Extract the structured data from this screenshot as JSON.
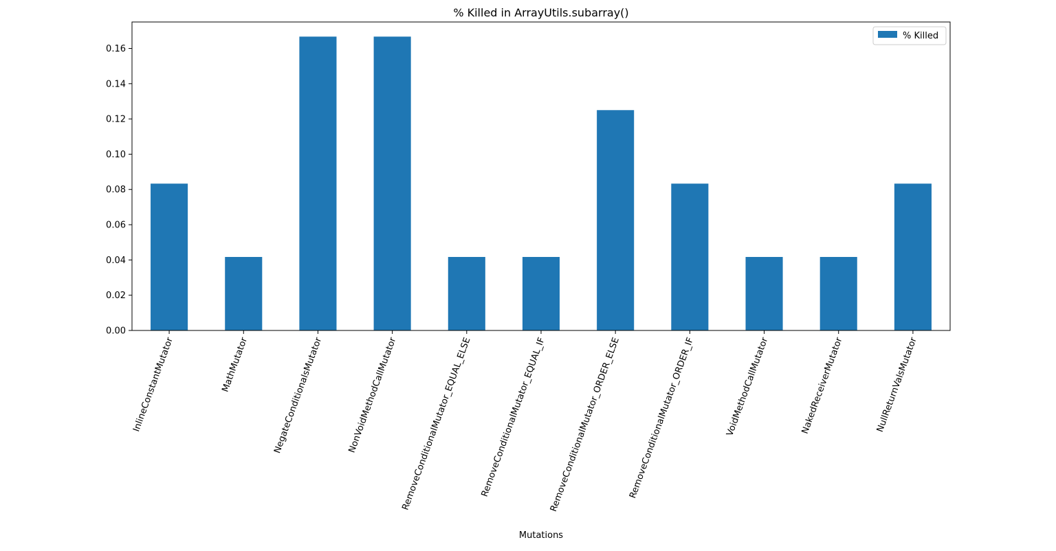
{
  "chart_data": {
    "type": "bar",
    "title": "% Killed in ArrayUtils.subarray()",
    "xlabel": "Mutations",
    "ylabel": "",
    "ylim": [
      0,
      0.175
    ],
    "yticks": [
      0.0,
      0.02,
      0.04,
      0.06,
      0.08,
      0.1,
      0.12,
      0.14,
      0.16
    ],
    "ytick_labels": [
      "0.00",
      "0.02",
      "0.04",
      "0.06",
      "0.08",
      "0.10",
      "0.12",
      "0.14",
      "0.16"
    ],
    "categories": [
      "InlineConstantMutator",
      "MathMutator",
      "NegateConditionalsMutator",
      "NonVoidMethodCallMutator",
      "RemoveConditionalMutator_EQUAL_ELSE",
      "RemoveConditionalMutator_EQUAL_IF",
      "RemoveConditionalMutator_ORDER_ELSE",
      "RemoveConditionalMutator_ORDER_IF",
      "VoidMethodCallMutator",
      "NakedReceiverMutator",
      "NullReturnValsMutator"
    ],
    "series": [
      {
        "name": "% Killed",
        "color": "#1f77b4",
        "values": [
          0.0833,
          0.0417,
          0.1667,
          0.1667,
          0.0417,
          0.0417,
          0.125,
          0.0833,
          0.0417,
          0.0417,
          0.0833
        ]
      }
    ],
    "legend": "top-right",
    "grid": false,
    "x_tick_rotation_deg": 70
  }
}
